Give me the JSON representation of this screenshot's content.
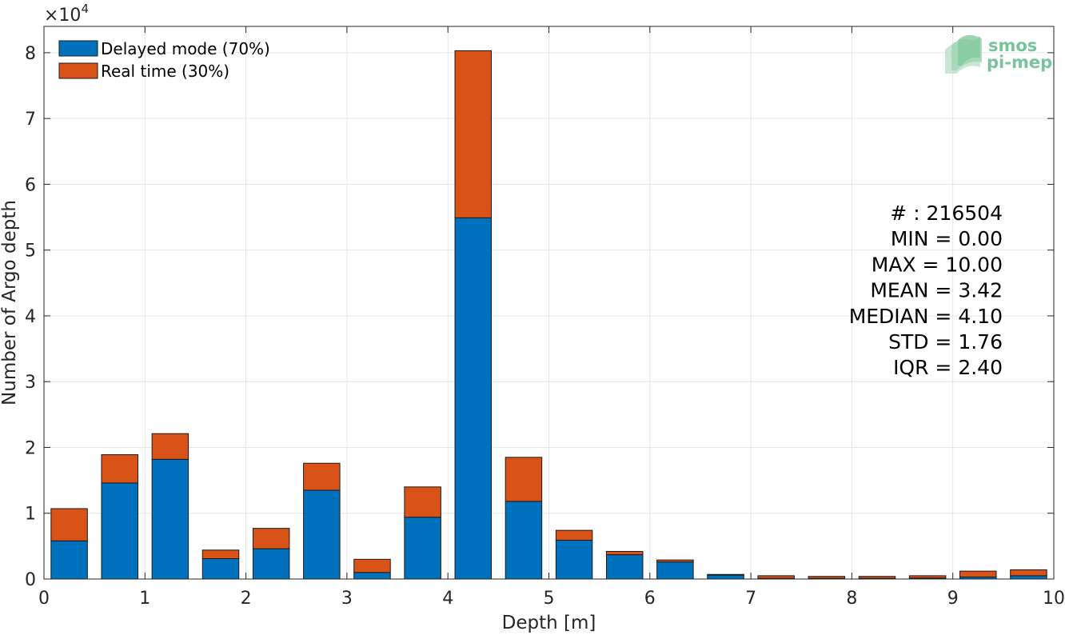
{
  "chart_data": {
    "type": "bar",
    "stacked": true,
    "xlabel": "Depth [m]",
    "ylabel": "Number of Argo depth",
    "y_exponent_label": "×10",
    "y_exponent_power": "4",
    "xlim": [
      0,
      10
    ],
    "ylim": [
      0,
      84000
    ],
    "x_ticks": [
      0,
      1,
      2,
      3,
      4,
      5,
      6,
      7,
      8,
      9,
      10
    ],
    "y_ticks": [
      0,
      10000,
      20000,
      30000,
      40000,
      50000,
      60000,
      70000,
      80000
    ],
    "y_tick_labels": [
      "0",
      "1",
      "2",
      "3",
      "4",
      "5",
      "6",
      "7",
      "8"
    ],
    "bar_width": 0.36,
    "x": [
      0.25,
      0.75,
      1.25,
      1.75,
      2.25,
      2.75,
      3.25,
      3.75,
      4.25,
      4.75,
      5.25,
      5.75,
      6.25,
      6.75,
      7.25,
      7.75,
      8.25,
      8.75,
      9.25,
      9.75
    ],
    "series": [
      {
        "name": "Delayed mode (70%)",
        "color": "#0072bd",
        "values": [
          5800,
          14600,
          18200,
          3100,
          4600,
          13500,
          1000,
          9400,
          54900,
          11800,
          5900,
          3700,
          2600,
          600,
          100,
          100,
          100,
          150,
          300,
          500
        ]
      },
      {
        "name": "Real time (30%)",
        "color": "#d95319",
        "values": [
          4900,
          4300,
          3900,
          1300,
          3100,
          4100,
          2000,
          4600,
          25400,
          6700,
          1500,
          500,
          300,
          100,
          400,
          300,
          300,
          350,
          900,
          900
        ]
      }
    ],
    "grid": true,
    "legend_position": "top-left",
    "stats": [
      "# : 216504",
      "MIN = 0.00",
      "MAX =  10.00",
      "MEAN = 3.42",
      "MEDIAN = 4.10",
      "STD = 1.76",
      "IQR = 2.40"
    ],
    "logo": {
      "line1": "smos",
      "line2": "pi-mep",
      "color": "#79c49a"
    }
  }
}
